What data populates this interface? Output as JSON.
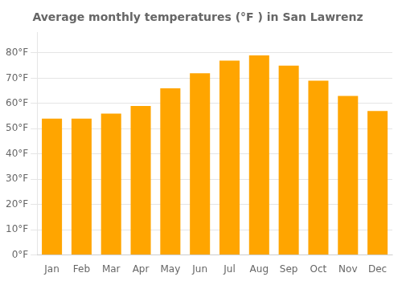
{
  "chart_data": {
    "type": "bar",
    "title": "Average monthly temperatures (°F ) in San Lawrenz",
    "categories": [
      "Jan",
      "Feb",
      "Mar",
      "Apr",
      "May",
      "Jun",
      "Jul",
      "Aug",
      "Sep",
      "Oct",
      "Nov",
      "Dec"
    ],
    "values": [
      54,
      54,
      56,
      59,
      66,
      72,
      77,
      79,
      75,
      69,
      63,
      57
    ],
    "color": "#FFA500",
    "ylim": [
      0,
      88
    ],
    "yticks": [
      {
        "value": 0,
        "label": "0°F"
      },
      {
        "value": 10,
        "label": "10°F"
      },
      {
        "value": 20,
        "label": "20°F"
      },
      {
        "value": 30,
        "label": "30°F"
      },
      {
        "value": 40,
        "label": "40°F"
      },
      {
        "value": 50,
        "label": "50°F"
      },
      {
        "value": 60,
        "label": "60°F"
      },
      {
        "value": 70,
        "label": "70°F"
      },
      {
        "value": 80,
        "label": "80°F"
      }
    ],
    "grid": true
  }
}
